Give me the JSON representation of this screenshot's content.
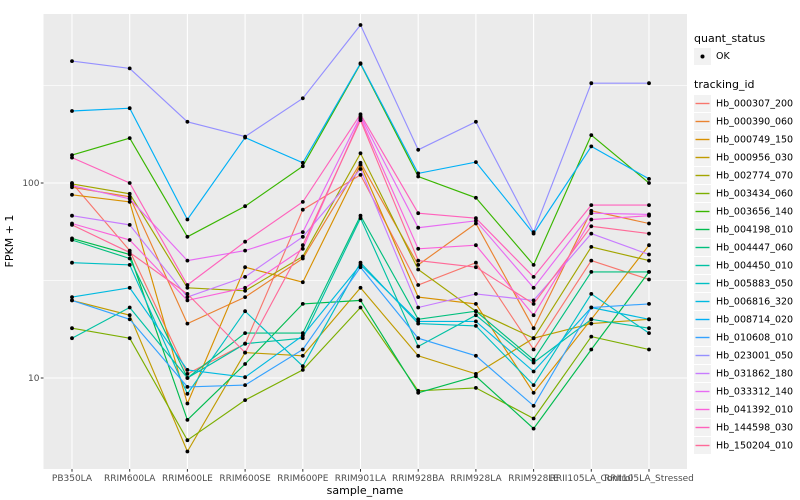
{
  "chart_data": {
    "type": "line",
    "title": "",
    "xlabel": "sample_name",
    "ylabel": "FPKM + 1",
    "y_scale": "log10",
    "y_ticks": [
      100,
      10
    ],
    "y_tick_labels": [
      "100",
      "10"
    ],
    "y_minor_gridlines": [
      316,
      31.6
    ],
    "ylim": [
      3.4,
      740
    ],
    "grid": "on",
    "panel_bg": "#EBEBEB",
    "grid_color": "#FFFFFF",
    "point_color": "#000000",
    "legend_key_bg": "#F2F2F2",
    "legend_position": "right",
    "categories": [
      "PB350LA",
      "RRIM600LA",
      "RRIM600LE",
      "RRIM600SE",
      "RRIM600PE",
      "RRIM901LA",
      "RRIM928BA",
      "RRIM928LA",
      "RRIM928LE",
      "RRII105LA_Control",
      "RRII105LA_Stressed"
    ],
    "series": [
      {
        "name": "Hb_000307_200",
        "color": "#F8766D",
        "values": [
          100,
          45,
          10.5,
          15,
          73,
          110,
          30,
          39,
          14,
          40,
          32
        ]
      },
      {
        "name": "Hb_000390_060",
        "color": "#EA8331",
        "values": [
          95,
          85,
          19,
          26,
          41,
          127,
          38,
          62,
          18,
          72,
          62
        ]
      },
      {
        "name": "Hb_000749_150",
        "color": "#D89000",
        "values": [
          87,
          80,
          7.4,
          37,
          31,
          124,
          26,
          24,
          8.4,
          20,
          48
        ]
      },
      {
        "name": "Hb_000956_030",
        "color": "#C09B00",
        "values": [
          25,
          21,
          4.2,
          13.5,
          13,
          29,
          13,
          10.5,
          16,
          19,
          20
        ]
      },
      {
        "name": "Hb_002774_070",
        "color": "#A3A500",
        "values": [
          99,
          88,
          29,
          28,
          42,
          142,
          36,
          22,
          16,
          47,
          40
        ]
      },
      {
        "name": "Hb_003434_060",
        "color": "#7CAE00",
        "values": [
          18,
          16,
          4.8,
          7.7,
          11,
          23,
          8.6,
          8.9,
          6.2,
          16.3,
          14
        ]
      },
      {
        "name": "Hb_003656_140",
        "color": "#39B600",
        "values": [
          139,
          170,
          53,
          76,
          122,
          408,
          108,
          84,
          38,
          176,
          100
        ]
      },
      {
        "name": "Hb_004198_010",
        "color": "#00BB4E",
        "values": [
          52,
          43,
          6.1,
          11.8,
          24,
          25,
          8.4,
          10.2,
          5.5,
          14,
          35
        ]
      },
      {
        "name": "Hb_004447_060",
        "color": "#00BF7D",
        "values": [
          51,
          41,
          10,
          17,
          17,
          68,
          20,
          22,
          12.4,
          35,
          35
        ]
      },
      {
        "name": "Hb_004450_010",
        "color": "#00C1A3",
        "values": [
          16,
          23,
          10,
          15,
          16,
          66,
          14.5,
          21,
          12,
          20,
          18
        ]
      },
      {
        "name": "Hb_005883_050",
        "color": "#00BFC4",
        "values": [
          39,
          38,
          8.3,
          22,
          11.5,
          39,
          19,
          18.5,
          9.2,
          27,
          17
        ]
      },
      {
        "name": "Hb_006816_320",
        "color": "#00BAE0",
        "values": [
          26,
          29,
          11,
          10.1,
          16.5,
          38,
          19.5,
          19.5,
          10.8,
          23,
          20
        ]
      },
      {
        "name": "Hb_008714_020",
        "color": "#00B0F6",
        "values": [
          234,
          242,
          65,
          171,
          127,
          411,
          112,
          128,
          55,
          154,
          105
        ]
      },
      {
        "name": "Hb_010608_010",
        "color": "#35A2FF",
        "values": [
          25,
          20,
          9,
          9.2,
          14,
          37,
          16,
          13,
          7.2,
          23,
          24
        ]
      },
      {
        "name": "Hb_023001_050",
        "color": "#9590FF",
        "values": [
          422,
          387,
          206,
          173,
          272,
          646,
          148,
          206,
          56,
          325,
          325
        ]
      },
      {
        "name": "Hb_031862_180",
        "color": "#C77CFF",
        "values": [
          68,
          61,
          26,
          33,
          53,
          118,
          23,
          27,
          25,
          55,
          43
        ]
      },
      {
        "name": "Hb_033312_140",
        "color": "#E76BF3",
        "values": [
          97,
          83,
          40,
          45,
          56,
          220,
          59,
          64,
          29,
          70,
          69
        ]
      },
      {
        "name": "Hb_041392_010",
        "color": "#FA62DB",
        "values": [
          62,
          51,
          25,
          29,
          46,
          215,
          46,
          48,
          21,
          65,
          68
        ]
      },
      {
        "name": "Hb_144598_030",
        "color": "#FF62BC",
        "values": [
          135,
          100,
          30,
          50,
          80,
          225,
          70,
          66,
          33,
          77,
          77
        ]
      },
      {
        "name": "Hb_150204_010",
        "color": "#FF6A98",
        "values": [
          61,
          44,
          27,
          13.5,
          48,
          210,
          40,
          37,
          24,
          60,
          55
        ]
      }
    ]
  },
  "legend": {
    "quant_status_title": "quant_status",
    "quant_status_items": [
      {
        "label": "OK"
      }
    ],
    "tracking_id_title": "tracking_id"
  }
}
